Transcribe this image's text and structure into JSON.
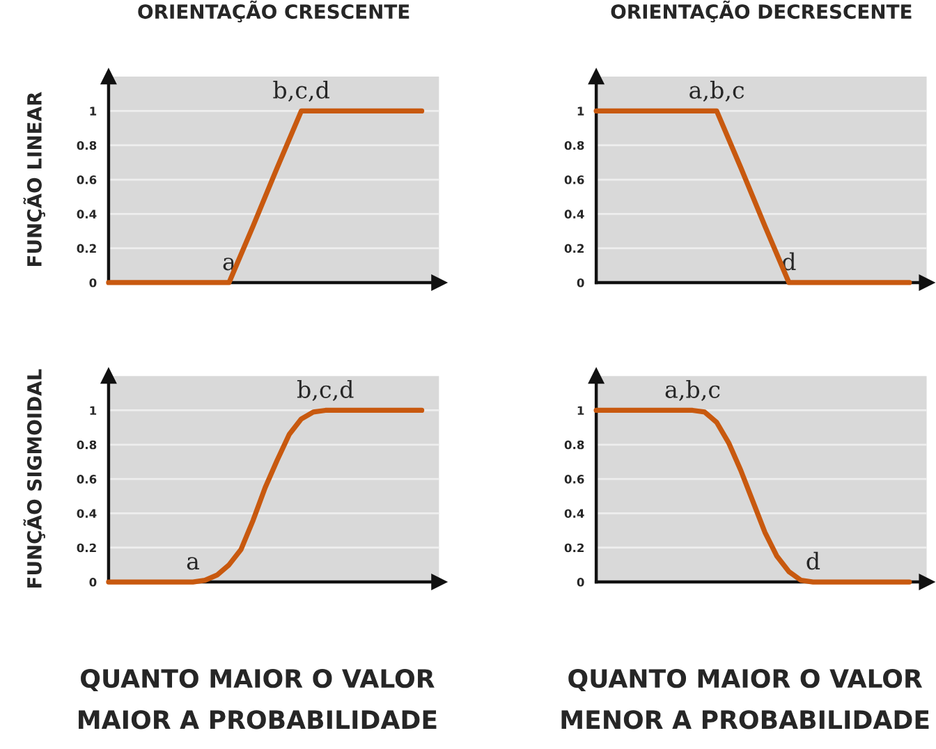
{
  "chart_data": [
    {
      "type": "line",
      "title": "ORIENTAÇÃO CRESCENTE",
      "ylabel": "FUNÇÃO LINEAR",
      "categories": [
        null,
        null,
        null,
        null,
        null,
        null,
        null,
        null,
        null,
        null,
        null,
        null,
        null,
        null
      ],
      "series": [
        {
          "color": "#c8590f",
          "values": [
            0,
            0,
            0,
            0,
            0,
            0,
            0.33,
            0.67,
            1,
            1,
            1,
            1,
            1,
            1
          ]
        }
      ],
      "ylim": [
        0,
        1.2
      ],
      "yticks": [
        0,
        0.2,
        0.4,
        0.6,
        0.8,
        1
      ],
      "grid": "y",
      "tick_labels": "y",
      "annotations": [
        {
          "text": "a",
          "y": 0
        },
        {
          "text": "b,c,d",
          "y": 1
        }
      ]
    },
    {
      "type": "line",
      "title": "ORIENTAÇÃO DECRESCENTE",
      "categories": [
        null,
        null,
        null,
        null,
        null,
        null,
        null,
        null,
        null,
        null,
        null,
        null,
        null,
        null
      ],
      "series": [
        {
          "color": "#c8590f",
          "values": [
            1,
            1,
            1,
            1,
            1,
            1,
            0.67,
            0.33,
            0,
            0,
            0,
            0,
            0,
            0
          ]
        }
      ],
      "ylim": [
        0,
        1.2
      ],
      "yticks": [
        0,
        0.2,
        0.4,
        0.6,
        0.8,
        1
      ],
      "grid": "y",
      "tick_labels": "y",
      "annotations": [
        {
          "text": "a,b,c",
          "y": 1
        },
        {
          "text": "d",
          "y": 0
        }
      ]
    },
    {
      "type": "line",
      "ylabel": "FUNÇÃO SIGMOIDAL",
      "categories": [
        null,
        null,
        null,
        null,
        null,
        null,
        null,
        null,
        null,
        null,
        null,
        null,
        null,
        null,
        null,
        null,
        null,
        null,
        null,
        null,
        null,
        null,
        null,
        null,
        null,
        null,
        null
      ],
      "series": [
        {
          "color": "#c8590f",
          "values": [
            0,
            0,
            0,
            0,
            0,
            0,
            0,
            0,
            0.01,
            0.04,
            0.1,
            0.19,
            0.36,
            0.55,
            0.71,
            0.86,
            0.95,
            0.99,
            1,
            1,
            1,
            1,
            1,
            1,
            1,
            1,
            1
          ]
        }
      ],
      "ylim": [
        0,
        1.2
      ],
      "yticks": [
        0,
        0.2,
        0.4,
        0.6,
        0.8,
        1
      ],
      "grid": "y",
      "tick_labels": "y",
      "annotations": [
        {
          "text": "a",
          "y": 0
        },
        {
          "text": "b,c,d",
          "y": 1
        },
        "QUANTO MAIOR O VALOR",
        "MAIOR A PROBABILIDADE"
      ]
    },
    {
      "type": "line",
      "categories": [
        null,
        null,
        null,
        null,
        null,
        null,
        null,
        null,
        null,
        null,
        null,
        null,
        null,
        null,
        null,
        null,
        null,
        null,
        null,
        null,
        null,
        null,
        null,
        null,
        null,
        null,
        null
      ],
      "series": [
        {
          "color": "#c8590f",
          "values": [
            1,
            1,
            1,
            1,
            1,
            1,
            1,
            1,
            1,
            0.99,
            0.93,
            0.81,
            0.65,
            0.47,
            0.29,
            0.15,
            0.06,
            0.01,
            0,
            0,
            0,
            0,
            0,
            0,
            0,
            0,
            0
          ]
        }
      ],
      "ylim": [
        0,
        1.2
      ],
      "yticks": [
        0,
        0.2,
        0.4,
        0.6,
        0.8,
        1
      ],
      "grid": "y",
      "tick_labels": "y",
      "annotations": [
        {
          "text": "a,b,c",
          "y": 1
        },
        {
          "text": "d",
          "y": 0
        },
        "QUANTO MAIOR O VALOR",
        "MENOR A PROBABILIDADE"
      ]
    }
  ]
}
